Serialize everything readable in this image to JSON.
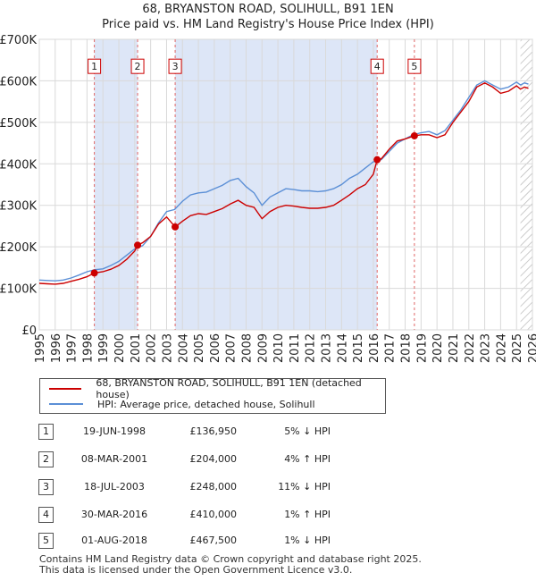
{
  "chart_data": {
    "type": "line",
    "title": "68, BRYANSTON ROAD, SOLIHULL, B91 1EN",
    "subtitle": "Price paid vs. HM Land Registry's House Price Index (HPI)",
    "xlabel": "",
    "ylabel": "",
    "xlim": [
      1995,
      2026
    ],
    "ylim": [
      0,
      700000
    ],
    "x_ticks": [
      "1995",
      "1996",
      "1997",
      "1998",
      "1999",
      "2000",
      "2001",
      "2002",
      "2003",
      "2004",
      "2005",
      "2006",
      "2007",
      "2008",
      "2009",
      "2010",
      "2011",
      "2012",
      "2013",
      "2014",
      "2015",
      "2016",
      "2017",
      "2018",
      "2019",
      "2020",
      "2021",
      "2022",
      "2023",
      "2024",
      "2025",
      "2026"
    ],
    "y_ticks": [
      {
        "value": 0,
        "label": "£0"
      },
      {
        "value": 100000,
        "label": "£100K"
      },
      {
        "value": 200000,
        "label": "£200K"
      },
      {
        "value": 300000,
        "label": "£300K"
      },
      {
        "value": 400000,
        "label": "£400K"
      },
      {
        "value": 500000,
        "label": "£500K"
      },
      {
        "value": 600000,
        "label": "£600K"
      },
      {
        "value": 700000,
        "label": "£700K"
      }
    ],
    "grid": true,
    "forecast_start": 2025.25,
    "colors": {
      "property": "#cc0000",
      "hpi": "#5b8fd6",
      "shade": "#dde6f7",
      "marker": "#cc0000"
    },
    "series": [
      {
        "name": "68, BRYANSTON ROAD, SOLIHULL, B91 1EN (detached house)",
        "color": "#cc0000",
        "points": [
          [
            1995.0,
            112000
          ],
          [
            1995.5,
            111000
          ],
          [
            1996.0,
            110000
          ],
          [
            1996.5,
            112000
          ],
          [
            1997.0,
            117000
          ],
          [
            1997.5,
            122000
          ],
          [
            1998.0,
            128000
          ],
          [
            1998.46,
            136950
          ],
          [
            1999.0,
            140000
          ],
          [
            1999.5,
            146000
          ],
          [
            2000.0,
            155000
          ],
          [
            2000.5,
            170000
          ],
          [
            2001.0,
            190000
          ],
          [
            2001.18,
            204000
          ],
          [
            2001.5,
            210000
          ],
          [
            2002.0,
            225000
          ],
          [
            2002.5,
            255000
          ],
          [
            2003.0,
            272000
          ],
          [
            2003.54,
            248000
          ],
          [
            2004.0,
            262000
          ],
          [
            2004.5,
            275000
          ],
          [
            2005.0,
            280000
          ],
          [
            2005.5,
            278000
          ],
          [
            2006.0,
            285000
          ],
          [
            2006.5,
            292000
          ],
          [
            2007.0,
            303000
          ],
          [
            2007.5,
            312000
          ],
          [
            2008.0,
            300000
          ],
          [
            2008.5,
            295000
          ],
          [
            2009.0,
            268000
          ],
          [
            2009.5,
            285000
          ],
          [
            2010.0,
            295000
          ],
          [
            2010.5,
            300000
          ],
          [
            2011.0,
            298000
          ],
          [
            2011.5,
            295000
          ],
          [
            2012.0,
            293000
          ],
          [
            2012.5,
            293000
          ],
          [
            2013.0,
            295000
          ],
          [
            2013.5,
            300000
          ],
          [
            2014.0,
            312000
          ],
          [
            2014.5,
            325000
          ],
          [
            2015.0,
            340000
          ],
          [
            2015.5,
            350000
          ],
          [
            2016.0,
            375000
          ],
          [
            2016.24,
            410000
          ],
          [
            2016.5,
            412000
          ],
          [
            2017.0,
            435000
          ],
          [
            2017.5,
            455000
          ],
          [
            2018.0,
            460000
          ],
          [
            2018.58,
            467500
          ],
          [
            2019.0,
            470000
          ],
          [
            2019.5,
            470000
          ],
          [
            2020.0,
            463000
          ],
          [
            2020.5,
            470000
          ],
          [
            2021.0,
            500000
          ],
          [
            2021.5,
            525000
          ],
          [
            2022.0,
            550000
          ],
          [
            2022.5,
            585000
          ],
          [
            2023.0,
            595000
          ],
          [
            2023.5,
            585000
          ],
          [
            2024.0,
            570000
          ],
          [
            2024.5,
            575000
          ],
          [
            2025.0,
            588000
          ],
          [
            2025.25,
            580000
          ],
          [
            2025.5,
            585000
          ],
          [
            2025.75,
            582000
          ]
        ]
      },
      {
        "name": "HPI: Average price, detached house, Solihull",
        "color": "#5b8fd6",
        "points": [
          [
            1995.0,
            120000
          ],
          [
            1995.5,
            119000
          ],
          [
            1996.0,
            118000
          ],
          [
            1996.5,
            120000
          ],
          [
            1997.0,
            125000
          ],
          [
            1997.5,
            132000
          ],
          [
            1998.0,
            140000
          ],
          [
            1998.5,
            145000
          ],
          [
            1999.0,
            147000
          ],
          [
            1999.5,
            155000
          ],
          [
            2000.0,
            165000
          ],
          [
            2000.5,
            180000
          ],
          [
            2001.0,
            195000
          ],
          [
            2001.5,
            203000
          ],
          [
            2002.0,
            225000
          ],
          [
            2002.5,
            258000
          ],
          [
            2003.0,
            285000
          ],
          [
            2003.5,
            290000
          ],
          [
            2004.0,
            310000
          ],
          [
            2004.5,
            325000
          ],
          [
            2005.0,
            330000
          ],
          [
            2005.5,
            332000
          ],
          [
            2006.0,
            340000
          ],
          [
            2006.5,
            348000
          ],
          [
            2007.0,
            360000
          ],
          [
            2007.5,
            365000
          ],
          [
            2008.0,
            345000
          ],
          [
            2008.5,
            330000
          ],
          [
            2009.0,
            300000
          ],
          [
            2009.5,
            320000
          ],
          [
            2010.0,
            330000
          ],
          [
            2010.5,
            340000
          ],
          [
            2011.0,
            338000
          ],
          [
            2011.5,
            335000
          ],
          [
            2012.0,
            335000
          ],
          [
            2012.5,
            333000
          ],
          [
            2013.0,
            335000
          ],
          [
            2013.5,
            340000
          ],
          [
            2014.0,
            350000
          ],
          [
            2014.5,
            365000
          ],
          [
            2015.0,
            375000
          ],
          [
            2015.5,
            390000
          ],
          [
            2016.0,
            405000
          ],
          [
            2016.5,
            410000
          ],
          [
            2017.0,
            430000
          ],
          [
            2017.5,
            450000
          ],
          [
            2018.0,
            460000
          ],
          [
            2018.5,
            470000
          ],
          [
            2019.0,
            475000
          ],
          [
            2019.5,
            478000
          ],
          [
            2020.0,
            470000
          ],
          [
            2020.5,
            480000
          ],
          [
            2021.0,
            505000
          ],
          [
            2021.5,
            530000
          ],
          [
            2022.0,
            560000
          ],
          [
            2022.5,
            590000
          ],
          [
            2023.0,
            600000
          ],
          [
            2023.5,
            590000
          ],
          [
            2024.0,
            580000
          ],
          [
            2024.5,
            585000
          ],
          [
            2025.0,
            597000
          ],
          [
            2025.25,
            590000
          ],
          [
            2025.5,
            595000
          ],
          [
            2025.75,
            592000
          ]
        ]
      }
    ],
    "sales": [
      {
        "label": "1",
        "x": 1998.46,
        "date": "19-JUN-1998",
        "price_value": 136950,
        "price": "£136,950",
        "hpi": "5% ↓ HPI"
      },
      {
        "label": "2",
        "x": 2001.18,
        "date": "08-MAR-2001",
        "price_value": 204000,
        "price": "£204,000",
        "hpi": "4% ↑ HPI"
      },
      {
        "label": "3",
        "x": 2003.54,
        "date": "18-JUL-2003",
        "price_value": 248000,
        "price": "£248,000",
        "hpi": "11% ↓ HPI"
      },
      {
        "label": "4",
        "x": 2016.24,
        "date": "30-MAR-2016",
        "price_value": 410000,
        "price": "£410,000",
        "hpi": "1% ↑ HPI"
      },
      {
        "label": "5",
        "x": 2018.58,
        "date": "01-AUG-2018",
        "price_value": 467500,
        "price": "£467,500",
        "hpi": "1% ↓ HPI"
      }
    ],
    "sale_label_value": 635000
  },
  "legend": {
    "property_label": "68, BRYANSTON ROAD, SOLIHULL, B91 1EN (detached house)",
    "hpi_label": "HPI: Average price, detached house, Solihull"
  },
  "footer": {
    "line1": "Contains HM Land Registry data © Crown copyright and database right 2025.",
    "line2": "This data is licensed under the Open Government Licence v3.0."
  }
}
